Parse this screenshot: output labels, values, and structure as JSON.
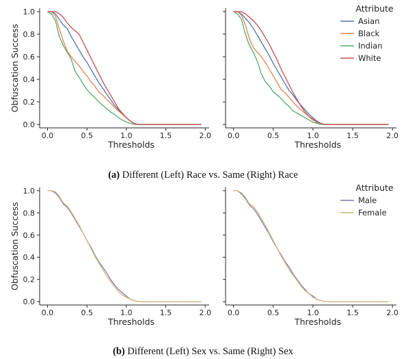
{
  "chart_data": [
    {
      "type": "line",
      "panel": "race-left",
      "xlabel": "Thresholds",
      "ylabel": "Obfuscation Success",
      "xlim": [
        -0.1,
        2.05
      ],
      "ylim": [
        -0.03,
        1.03
      ],
      "xticks": [
        "0.0",
        "0.5",
        "1.0",
        "1.5",
        "2.0"
      ],
      "yticks": [
        "0.0",
        "0.2",
        "0.4",
        "0.6",
        "0.8",
        "1.0"
      ],
      "show_yticklabels": true,
      "legend": null,
      "series": [
        {
          "name": "Asian",
          "color": "#4c72b0",
          "x": [
            0,
            0.05,
            0.1,
            0.15,
            0.2,
            0.25,
            0.3,
            0.35,
            0.4,
            0.45,
            0.5,
            0.55,
            0.6,
            0.65,
            0.7,
            0.75,
            0.8,
            0.85,
            0.9,
            0.95,
            1.0,
            1.05,
            1.1,
            1.15,
            1.2,
            1.5,
            1.95
          ],
          "y": [
            1.0,
            1.0,
            0.98,
            0.93,
            0.88,
            0.85,
            0.78,
            0.72,
            0.66,
            0.6,
            0.55,
            0.49,
            0.43,
            0.37,
            0.32,
            0.27,
            0.22,
            0.17,
            0.13,
            0.09,
            0.06,
            0.03,
            0.01,
            0.0,
            0.0,
            0.0,
            0.0
          ]
        },
        {
          "name": "Black",
          "color": "#dd8452",
          "x": [
            0,
            0.05,
            0.1,
            0.15,
            0.2,
            0.25,
            0.3,
            0.35,
            0.4,
            0.45,
            0.5,
            0.55,
            0.6,
            0.65,
            0.7,
            0.75,
            0.8,
            0.85,
            0.9,
            0.95,
            1.0,
            1.05,
            1.1,
            1.15,
            1.2,
            1.5,
            1.95
          ],
          "y": [
            1.0,
            1.0,
            0.96,
            0.85,
            0.74,
            0.65,
            0.6,
            0.56,
            0.52,
            0.47,
            0.43,
            0.38,
            0.34,
            0.29,
            0.26,
            0.22,
            0.19,
            0.15,
            0.12,
            0.09,
            0.06,
            0.03,
            0.01,
            0.0,
            0.0,
            0.0,
            0.0
          ]
        },
        {
          "name": "Indian",
          "color": "#55a868",
          "x": [
            0,
            0.05,
            0.1,
            0.15,
            0.2,
            0.25,
            0.3,
            0.35,
            0.4,
            0.45,
            0.5,
            0.55,
            0.6,
            0.65,
            0.7,
            0.75,
            0.8,
            0.85,
            0.9,
            0.95,
            1.0,
            1.05,
            1.1,
            1.15,
            1.2,
            1.5,
            1.95
          ],
          "y": [
            1.0,
            0.98,
            0.92,
            0.78,
            0.7,
            0.64,
            0.58,
            0.47,
            0.42,
            0.36,
            0.31,
            0.27,
            0.24,
            0.2,
            0.17,
            0.14,
            0.11,
            0.09,
            0.06,
            0.04,
            0.02,
            0.01,
            0.0,
            0.0,
            0.0,
            0.0,
            0.0
          ]
        },
        {
          "name": "White",
          "color": "#c44e52",
          "x": [
            0,
            0.05,
            0.1,
            0.15,
            0.2,
            0.25,
            0.3,
            0.35,
            0.4,
            0.45,
            0.5,
            0.55,
            0.6,
            0.65,
            0.7,
            0.75,
            0.8,
            0.85,
            0.9,
            0.95,
            1.0,
            1.05,
            1.1,
            1.15,
            1.2,
            1.5,
            1.95
          ],
          "y": [
            1.0,
            1.0,
            1.0,
            0.98,
            0.95,
            0.9,
            0.86,
            0.83,
            0.8,
            0.73,
            0.66,
            0.59,
            0.52,
            0.45,
            0.38,
            0.32,
            0.26,
            0.2,
            0.14,
            0.1,
            0.06,
            0.03,
            0.01,
            0.0,
            0.0,
            0.0,
            0.0
          ]
        }
      ]
    },
    {
      "type": "line",
      "panel": "race-right",
      "xlabel": "Thresholds",
      "ylabel": "",
      "xlim": [
        -0.1,
        2.05
      ],
      "ylim": [
        -0.03,
        1.03
      ],
      "xticks": [
        "0.0",
        "0.5",
        "1.0",
        "1.5",
        "2.0"
      ],
      "yticks": [
        "0.0",
        "0.2",
        "0.4",
        "0.6",
        "0.8",
        "1.0"
      ],
      "show_yticklabels": false,
      "legend": {
        "title": "Attribute",
        "placement": "top-right",
        "entries": [
          "Asian",
          "Black",
          "Indian",
          "White"
        ]
      },
      "series": [
        {
          "name": "Asian",
          "color": "#4c72b0",
          "x": [
            0,
            0.05,
            0.1,
            0.15,
            0.2,
            0.25,
            0.3,
            0.35,
            0.4,
            0.45,
            0.5,
            0.55,
            0.6,
            0.65,
            0.7,
            0.75,
            0.8,
            0.85,
            0.9,
            0.95,
            1.0,
            1.05,
            1.1,
            1.15,
            1.2,
            1.5,
            1.95
          ],
          "y": [
            1.0,
            1.0,
            0.98,
            0.94,
            0.9,
            0.85,
            0.79,
            0.73,
            0.67,
            0.61,
            0.54,
            0.48,
            0.42,
            0.36,
            0.3,
            0.26,
            0.21,
            0.17,
            0.13,
            0.09,
            0.06,
            0.03,
            0.01,
            0.0,
            0.0,
            0.0,
            0.0
          ]
        },
        {
          "name": "Black",
          "color": "#dd8452",
          "x": [
            0,
            0.05,
            0.1,
            0.15,
            0.2,
            0.25,
            0.3,
            0.35,
            0.4,
            0.45,
            0.5,
            0.55,
            0.6,
            0.65,
            0.7,
            0.75,
            0.8,
            0.85,
            0.9,
            0.95,
            1.0,
            1.05,
            1.1,
            1.15,
            1.2,
            1.5,
            1.95
          ],
          "y": [
            1.0,
            1.0,
            0.97,
            0.88,
            0.76,
            0.68,
            0.64,
            0.6,
            0.55,
            0.49,
            0.43,
            0.37,
            0.31,
            0.28,
            0.24,
            0.2,
            0.16,
            0.13,
            0.1,
            0.07,
            0.05,
            0.02,
            0.01,
            0.0,
            0.0,
            0.0,
            0.0
          ]
        },
        {
          "name": "Indian",
          "color": "#55a868",
          "x": [
            0,
            0.05,
            0.1,
            0.15,
            0.2,
            0.25,
            0.3,
            0.35,
            0.4,
            0.45,
            0.5,
            0.55,
            0.6,
            0.65,
            0.7,
            0.75,
            0.8,
            0.85,
            0.9,
            0.95,
            1.0,
            1.05,
            1.1,
            1.15,
            1.2,
            1.5,
            1.95
          ],
          "y": [
            1.0,
            0.98,
            0.93,
            0.8,
            0.7,
            0.64,
            0.56,
            0.45,
            0.38,
            0.34,
            0.29,
            0.26,
            0.23,
            0.19,
            0.16,
            0.12,
            0.1,
            0.08,
            0.06,
            0.04,
            0.02,
            0.01,
            0.0,
            0.0,
            0.0,
            0.0,
            0.0
          ]
        },
        {
          "name": "White",
          "color": "#c44e52",
          "x": [
            0,
            0.05,
            0.1,
            0.15,
            0.2,
            0.25,
            0.3,
            0.35,
            0.4,
            0.45,
            0.5,
            0.55,
            0.6,
            0.65,
            0.7,
            0.75,
            0.8,
            0.85,
            0.9,
            0.95,
            1.0,
            1.05,
            1.1,
            1.15,
            1.2,
            1.5,
            1.95
          ],
          "y": [
            1.0,
            1.0,
            1.0,
            0.98,
            0.95,
            0.92,
            0.88,
            0.83,
            0.77,
            0.71,
            0.64,
            0.57,
            0.49,
            0.42,
            0.35,
            0.28,
            0.22,
            0.16,
            0.11,
            0.07,
            0.04,
            0.02,
            0.01,
            0.0,
            0.0,
            0.0,
            0.0
          ]
        }
      ]
    },
    {
      "type": "line",
      "panel": "sex-left",
      "xlabel": "Thresholds",
      "ylabel": "Obfuscation Success",
      "xlim": [
        -0.1,
        2.05
      ],
      "ylim": [
        -0.03,
        1.03
      ],
      "xticks": [
        "0.0",
        "0.5",
        "1.0",
        "1.5",
        "2.0"
      ],
      "yticks": [
        "0.0",
        "0.2",
        "0.4",
        "0.6",
        "0.8",
        "1.0"
      ],
      "show_yticklabels": true,
      "legend": null,
      "series": [
        {
          "name": "Male",
          "color": "#8172b3",
          "x": [
            0,
            0.05,
            0.1,
            0.15,
            0.2,
            0.25,
            0.3,
            0.35,
            0.4,
            0.45,
            0.5,
            0.55,
            0.6,
            0.65,
            0.7,
            0.75,
            0.8,
            0.85,
            0.9,
            0.95,
            1.0,
            1.05,
            1.1,
            1.15,
            1.2,
            1.5,
            1.95
          ],
          "y": [
            1.0,
            1.0,
            0.98,
            0.94,
            0.88,
            0.85,
            0.8,
            0.74,
            0.68,
            0.62,
            0.55,
            0.49,
            0.42,
            0.36,
            0.31,
            0.26,
            0.2,
            0.15,
            0.11,
            0.08,
            0.05,
            0.02,
            0.01,
            0.0,
            0.0,
            0.0,
            0.0
          ]
        },
        {
          "name": "Female",
          "color": "#ccb974",
          "x": [
            0,
            0.05,
            0.1,
            0.15,
            0.2,
            0.25,
            0.3,
            0.35,
            0.4,
            0.45,
            0.5,
            0.55,
            0.6,
            0.65,
            0.7,
            0.75,
            0.8,
            0.85,
            0.9,
            0.95,
            1.0,
            1.05,
            1.1,
            1.15,
            1.2,
            1.5,
            1.95
          ],
          "y": [
            1.0,
            1.0,
            0.99,
            0.95,
            0.89,
            0.86,
            0.81,
            0.75,
            0.69,
            0.62,
            0.55,
            0.48,
            0.41,
            0.35,
            0.29,
            0.23,
            0.18,
            0.13,
            0.09,
            0.06,
            0.04,
            0.02,
            0.01,
            0.0,
            0.0,
            0.0,
            0.0
          ]
        }
      ]
    },
    {
      "type": "line",
      "panel": "sex-right",
      "xlabel": "Thresholds",
      "ylabel": "",
      "xlim": [
        -0.1,
        2.05
      ],
      "ylim": [
        -0.03,
        1.03
      ],
      "xticks": [
        "0.0",
        "0.5",
        "1.0",
        "1.5",
        "2.0"
      ],
      "yticks": [
        "0.0",
        "0.2",
        "0.4",
        "0.6",
        "0.8",
        "1.0"
      ],
      "show_yticklabels": false,
      "legend": {
        "title": "Attribute",
        "placement": "top-right",
        "entries": [
          "Male",
          "Female"
        ]
      },
      "series": [
        {
          "name": "Male",
          "color": "#8172b3",
          "x": [
            0,
            0.05,
            0.1,
            0.15,
            0.2,
            0.25,
            0.3,
            0.35,
            0.4,
            0.45,
            0.5,
            0.55,
            0.6,
            0.65,
            0.7,
            0.75,
            0.8,
            0.85,
            0.9,
            0.95,
            1.0,
            1.05,
            1.1,
            1.15,
            1.2,
            1.5,
            1.95
          ],
          "y": [
            1.0,
            1.0,
            0.97,
            0.93,
            0.87,
            0.84,
            0.79,
            0.73,
            0.67,
            0.61,
            0.54,
            0.48,
            0.42,
            0.36,
            0.31,
            0.25,
            0.2,
            0.15,
            0.11,
            0.07,
            0.05,
            0.02,
            0.01,
            0.0,
            0.0,
            0.0,
            0.0
          ]
        },
        {
          "name": "Female",
          "color": "#ccb974",
          "x": [
            0,
            0.05,
            0.1,
            0.15,
            0.2,
            0.25,
            0.3,
            0.35,
            0.4,
            0.45,
            0.5,
            0.55,
            0.6,
            0.65,
            0.7,
            0.75,
            0.8,
            0.85,
            0.9,
            0.95,
            1.0,
            1.05,
            1.1,
            1.15,
            1.2,
            1.5,
            1.95
          ],
          "y": [
            1.0,
            1.0,
            0.98,
            0.94,
            0.88,
            0.86,
            0.81,
            0.75,
            0.69,
            0.62,
            0.55,
            0.48,
            0.41,
            0.35,
            0.29,
            0.24,
            0.19,
            0.14,
            0.1,
            0.07,
            0.04,
            0.02,
            0.01,
            0.0,
            0.0,
            0.0,
            0.0
          ]
        }
      ]
    }
  ],
  "captions": [
    {
      "label": "(a)",
      "text": " Different (Left) Race vs. Same (Right) Race"
    },
    {
      "label": "(b)",
      "text": " Different (Left) Sex vs. Same (Right) Sex"
    }
  ]
}
